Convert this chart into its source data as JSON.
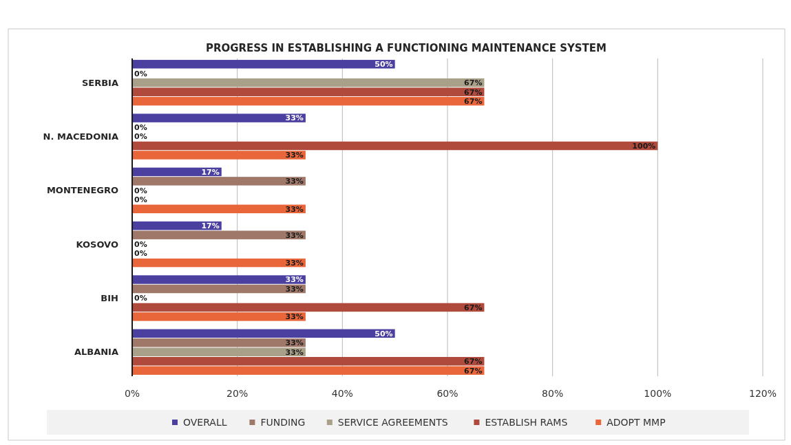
{
  "chart_data": {
    "type": "bar",
    "orientation": "horizontal",
    "title": "PROGRESS IN ESTABLISHING A FUNCTIONING MAINTENANCE SYSTEM",
    "categories": [
      "SERBIA",
      "N. MACEDONIA",
      "MONTENEGRO",
      "KOSOVO",
      "BIH",
      "ALBANIA"
    ],
    "series": [
      {
        "name": "OVERALL",
        "color": "#4b3fa0",
        "values": [
          50,
          33,
          17,
          17,
          33,
          50
        ],
        "value_labels": [
          "50%",
          "33%",
          "17%",
          "17%",
          "33%",
          "50%"
        ]
      },
      {
        "name": "FUNDING",
        "color": "#a0786a",
        "values": [
          0,
          0,
          33,
          33,
          33,
          33
        ],
        "value_labels": [
          "0%",
          "0%",
          "33%",
          "33%",
          "33%",
          "33%"
        ]
      },
      {
        "name": "SERVICE AGREEMENTS",
        "color": "#a8a088",
        "values": [
          67,
          0,
          0,
          0,
          0,
          33
        ],
        "value_labels": [
          "67%",
          "0%",
          "0%",
          "0%",
          "0%",
          "33%"
        ]
      },
      {
        "name": "ESTABLISH RAMS",
        "color": "#b04a3c",
        "values": [
          67,
          100,
          0,
          0,
          67,
          67
        ],
        "value_labels": [
          "67%",
          "100%",
          "0%",
          "0%",
          "67%",
          "67%"
        ]
      },
      {
        "name": "ADOPT MMP",
        "color": "#e8663a",
        "values": [
          67,
          33,
          33,
          33,
          33,
          67
        ],
        "value_labels": [
          "67%",
          "33%",
          "33%",
          "33%",
          "33%",
          "67%"
        ]
      }
    ],
    "xlim": [
      0,
      120
    ],
    "xticks": [
      {
        "value": 0,
        "label": "0%"
      },
      {
        "value": 20,
        "label": "20%"
      },
      {
        "value": 40,
        "label": "40%"
      },
      {
        "value": 60,
        "label": "60%"
      },
      {
        "value": 80,
        "label": "80%"
      },
      {
        "value": 100,
        "label": "100%"
      },
      {
        "value": 120,
        "label": "120%"
      }
    ],
    "grid": "x",
    "legend": "bottom"
  }
}
